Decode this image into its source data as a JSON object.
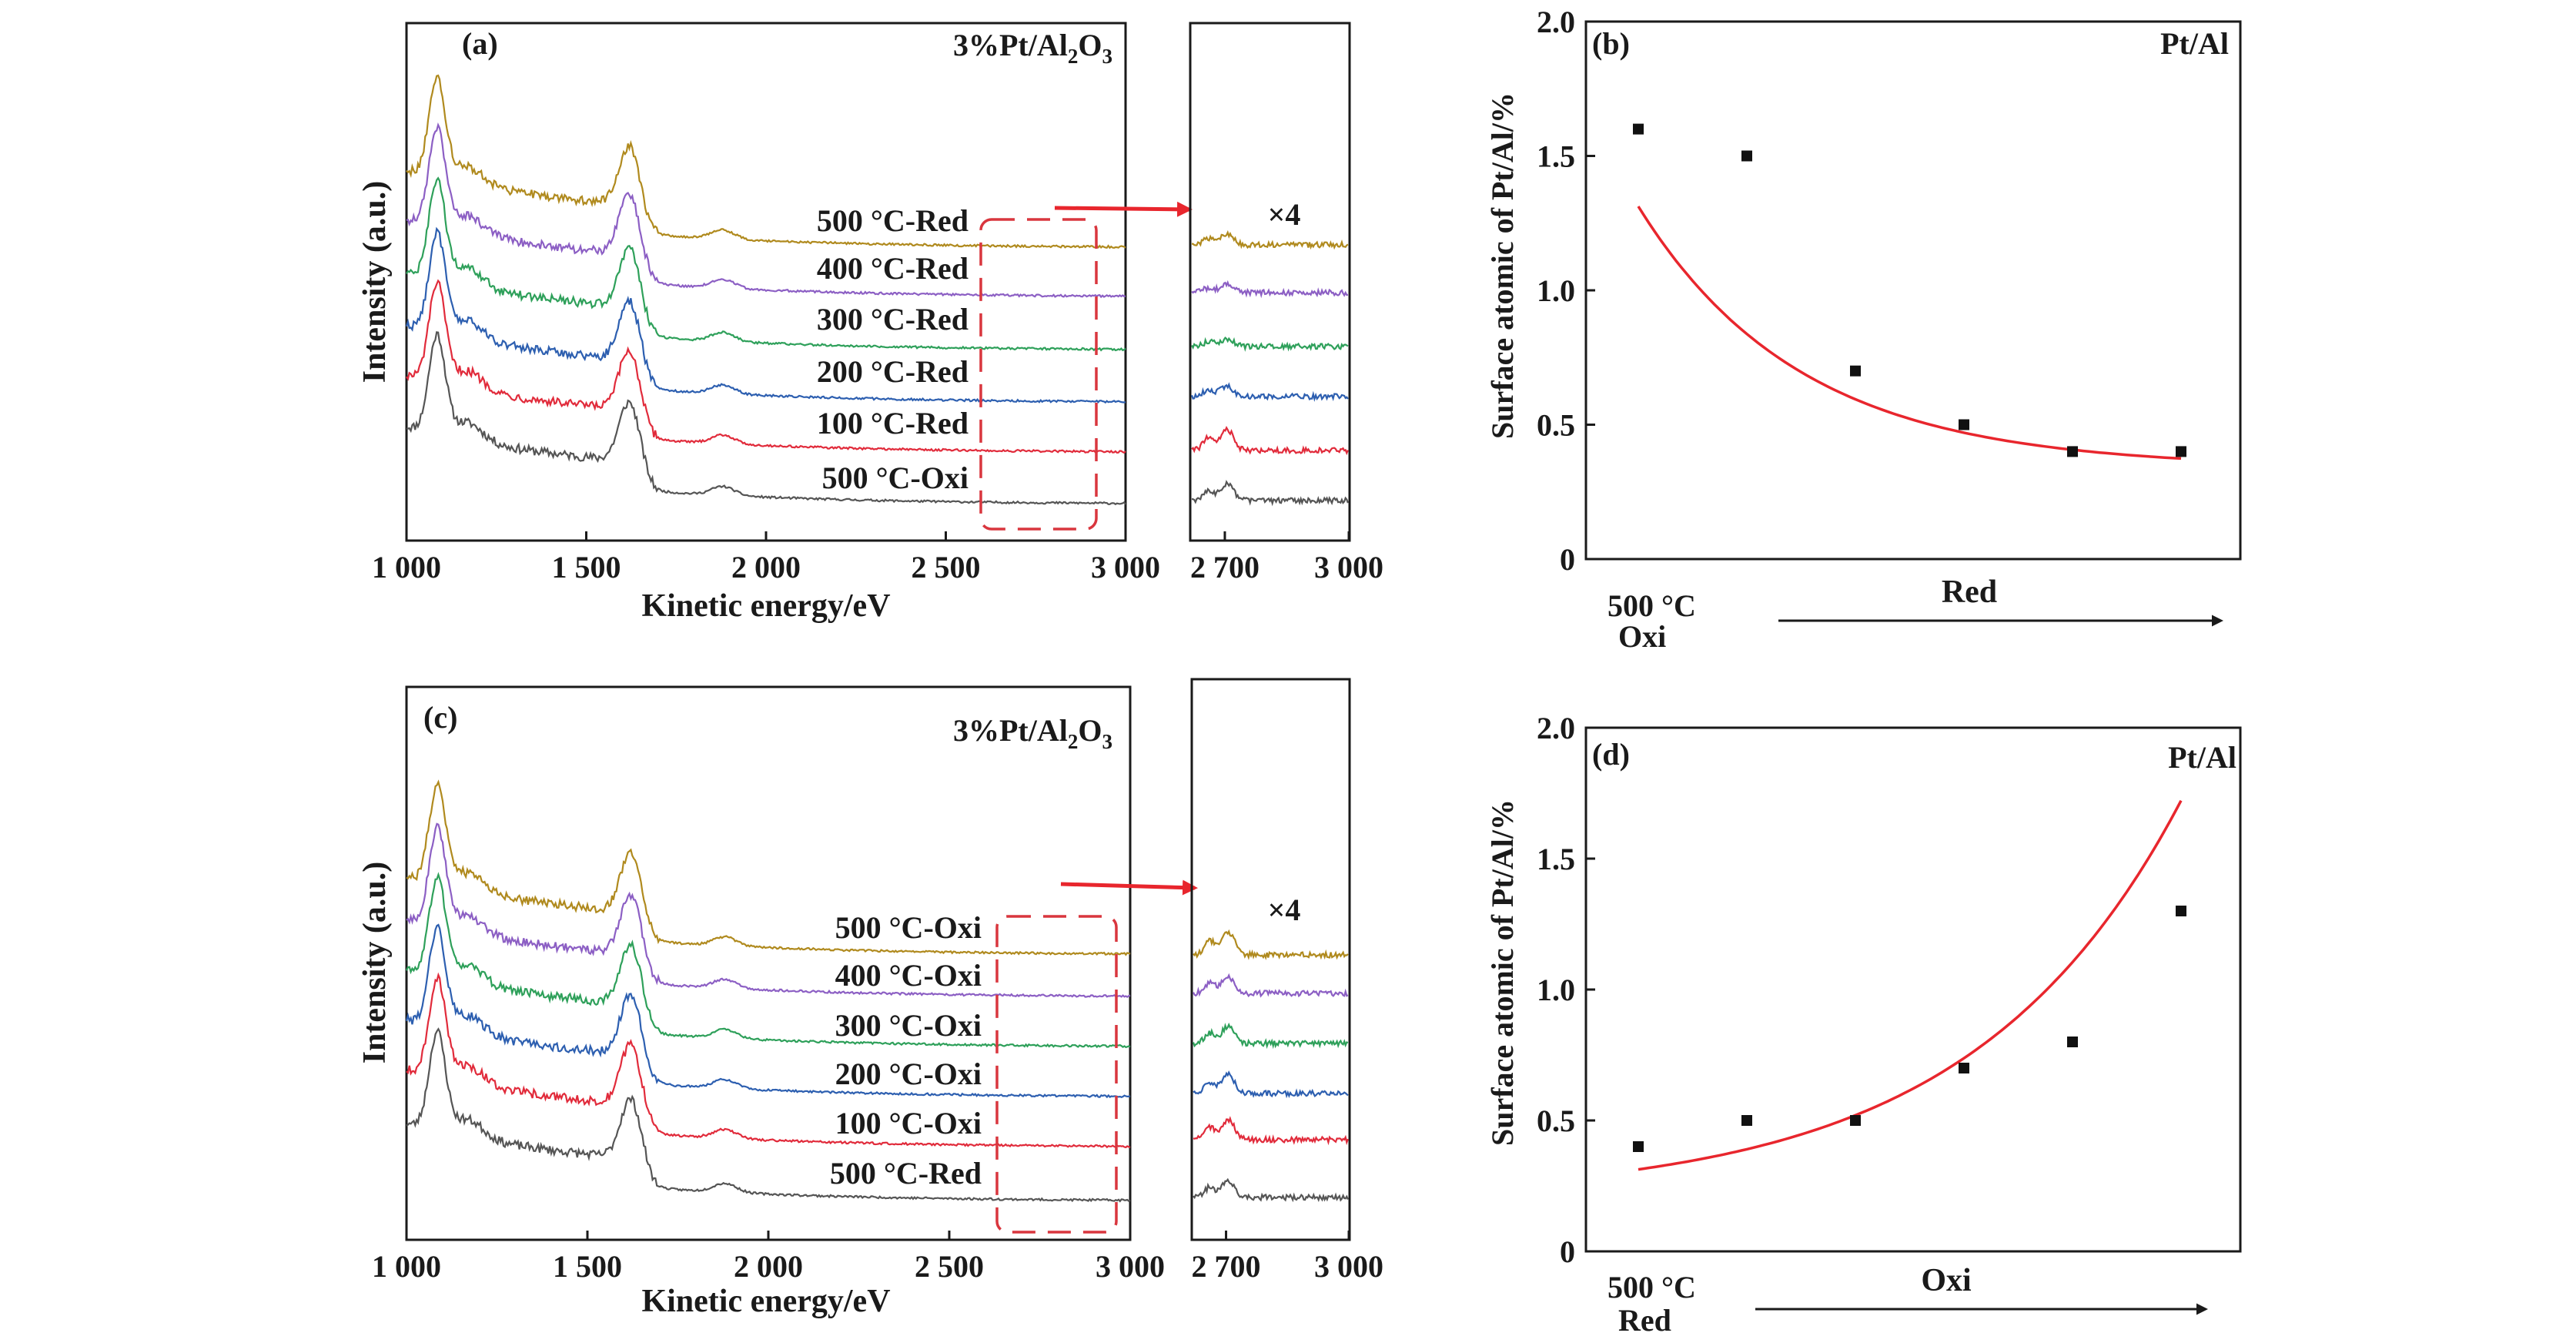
{
  "colors": {
    "axis": "#1a1a1a",
    "fit_line": "#e8262d",
    "marker": "#111111",
    "highlight_box": "#d9363e",
    "arrow": "#e8262d",
    "series": [
      "#555555",
      "#e12b3b",
      "#2d5fb0",
      "#2ea05a",
      "#8c5fc4",
      "#b08a1e"
    ]
  },
  "chart_data": [
    {
      "id": "a",
      "type": "line",
      "panel_label": "(a)",
      "sample_label": "3%Pt/Al2O3",
      "xlabel": "Kinetic energy/eV",
      "ylabel": "Intensity (a.u.)",
      "xlim": [
        1000,
        3000
      ],
      "xticks": [
        1000,
        1500,
        2000,
        2500,
        3000
      ],
      "xtick_labels": [
        "1 000",
        "1 500",
        "2 000",
        "2 500",
        "3 000"
      ],
      "series": [
        {
          "name": "500 °C-Oxi"
        },
        {
          "name": "100 °C-Red"
        },
        {
          "name": "200 °C-Red"
        },
        {
          "name": "300 °C-Red"
        },
        {
          "name": "400 °C-Red"
        },
        {
          "name": "500 °C-Red"
        }
      ],
      "highlight_region_ev": [
        2620,
        2940
      ],
      "inset": {
        "multiplier_label": "×4",
        "xlim": [
          2620,
          3000
        ],
        "xticks": [
          2700,
          3000
        ],
        "xtick_labels": [
          "2 700",
          "3 000"
        ]
      }
    },
    {
      "id": "b",
      "type": "scatter",
      "panel_label": "(b)",
      "corner_label": "Pt/Al",
      "ylabel": "Surface atomic of Pt/Al/%",
      "ylim": [
        0,
        2.0
      ],
      "yticks": [
        0,
        0.5,
        1.0,
        1.5,
        2.0
      ],
      "ytick_labels": [
        "0",
        "0.5",
        "1.0",
        "1.5",
        "2.0"
      ],
      "start_label_1": "500 °C",
      "start_label_2": "Oxi",
      "direction_label": "Red",
      "x": [
        1,
        2,
        3,
        4,
        5,
        6
      ],
      "values": [
        1.6,
        1.5,
        0.7,
        0.5,
        0.4,
        0.4
      ],
      "fit": {
        "type": "exponential",
        "a": 1.9,
        "b": 0.67,
        "c": 0.34,
        "x_range": [
          1,
          6
        ]
      }
    },
    {
      "id": "c",
      "type": "line",
      "panel_label": "(c)",
      "sample_label": "3%Pt/Al2O3",
      "xlabel": "Kinetic energy/eV",
      "ylabel": "Intensity (a.u.)",
      "xlim": [
        1000,
        3000
      ],
      "xticks": [
        1000,
        1500,
        2000,
        2500,
        3000
      ],
      "xtick_labels": [
        "1 000",
        "1 500",
        "2 000",
        "2 500",
        "3 000"
      ],
      "series": [
        {
          "name": "500 °C-Red"
        },
        {
          "name": "100 °C-Oxi"
        },
        {
          "name": "200 °C-Oxi"
        },
        {
          "name": "300 °C-Oxi"
        },
        {
          "name": "400 °C-Oxi"
        },
        {
          "name": "500 °C-Oxi"
        }
      ],
      "highlight_region_ev": [
        2620,
        2940
      ],
      "inset": {
        "multiplier_label": "×4",
        "xlim": [
          2620,
          3000
        ],
        "xticks": [
          2700,
          3000
        ],
        "xtick_labels": [
          "2 700",
          "3 000"
        ]
      }
    },
    {
      "id": "d",
      "type": "scatter",
      "panel_label": "(d)",
      "corner_label": "Pt/Al",
      "ylabel": "Surface atomic of Pt/Al/%",
      "ylim": [
        0,
        2.0
      ],
      "yticks": [
        0,
        0.5,
        1.0,
        1.5,
        2.0
      ],
      "ytick_labels": [
        "0",
        "0.5",
        "1.0",
        "1.5",
        "2.0"
      ],
      "start_label_1": "500 °C",
      "start_label_2": "Red",
      "direction_label": "Oxi",
      "x": [
        1,
        2,
        3,
        4,
        5,
        6
      ],
      "values": [
        0.4,
        0.5,
        0.5,
        0.7,
        0.8,
        1.3
      ],
      "fit": {
        "type": "exponential",
        "a": 0.113,
        "b": 0.52,
        "c": 0.2,
        "x_range": [
          1,
          6
        ]
      }
    }
  ]
}
